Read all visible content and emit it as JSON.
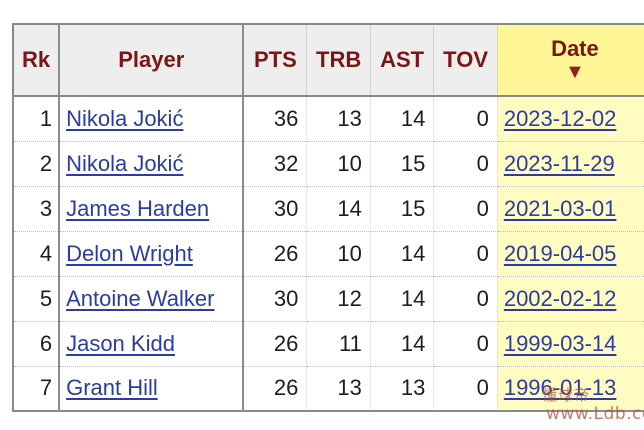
{
  "table": {
    "headers": {
      "rk": "Rk",
      "player": "Player",
      "pts": "PTS",
      "trb": "TRB",
      "ast": "AST",
      "tov": "TOV",
      "date": "Date",
      "date_sort_icon": "▼"
    },
    "sorted_column": "Date",
    "sort_direction": "descending",
    "rows": [
      {
        "rk": "1",
        "player": "Nikola Jokić",
        "pts": "36",
        "trb": "13",
        "ast": "14",
        "tov": "0",
        "date": "2023-12-02"
      },
      {
        "rk": "2",
        "player": "Nikola Jokić",
        "pts": "32",
        "trb": "10",
        "ast": "15",
        "tov": "0",
        "date": "2023-11-29"
      },
      {
        "rk": "3",
        "player": "James Harden",
        "pts": "30",
        "trb": "14",
        "ast": "15",
        "tov": "0",
        "date": "2021-03-01"
      },
      {
        "rk": "4",
        "player": "Delon Wright",
        "pts": "26",
        "trb": "10",
        "ast": "14",
        "tov": "0",
        "date": "2019-04-05"
      },
      {
        "rk": "5",
        "player": "Antoine Walker",
        "pts": "30",
        "trb": "12",
        "ast": "14",
        "tov": "0",
        "date": "2002-02-12"
      },
      {
        "rk": "6",
        "player": "Jason Kidd",
        "pts": "26",
        "trb": "11",
        "ast": "14",
        "tov": "0",
        "date": "1999-03-14"
      },
      {
        "rk": "7",
        "player": "Grant Hill",
        "pts": "26",
        "trb": "13",
        "ast": "13",
        "tov": "0",
        "date": "1996-01-13"
      }
    ]
  },
  "watermark": {
    "line1": "懂球帝",
    "line2": "www.Ldb.cc"
  },
  "colors": {
    "header_text": "#7d1514",
    "link": "#2a3ca8",
    "sorted_header_bg": "#fff797",
    "sorted_cell_bg": "#fffbc1",
    "header_bg": "#eeeeee"
  }
}
